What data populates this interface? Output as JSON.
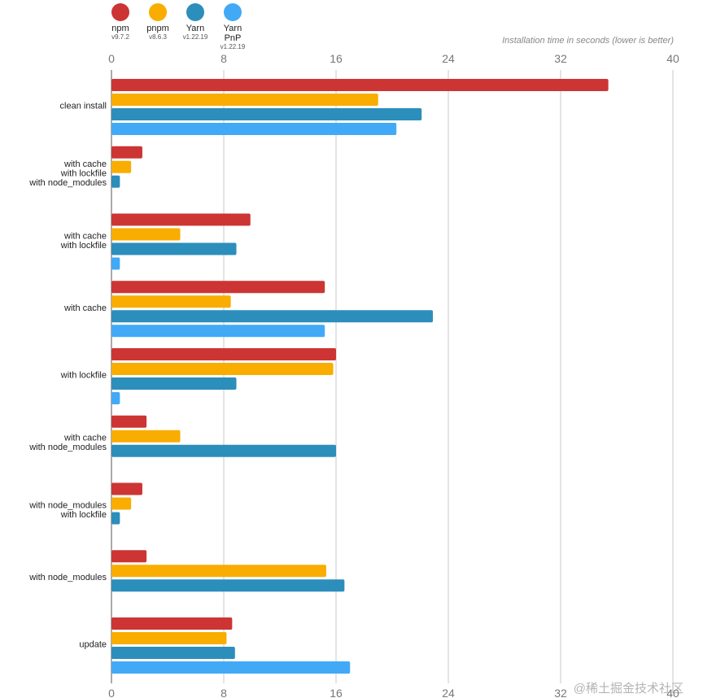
{
  "legend": [
    {
      "name": "npm",
      "version": "v9.7.2",
      "color": "#cc3534"
    },
    {
      "name": "pnpm",
      "version": "v8.6.3",
      "color": "#f9ad00"
    },
    {
      "name": "Yarn",
      "version": "v1.22.19",
      "color": "#2c8ebb"
    },
    {
      "name": "Yarn PnP",
      "version": "v1.22.19",
      "color": "#42a9f7"
    }
  ],
  "caption": "Installation time in seconds (lower is better)",
  "watermark": "@稀土掘金技术社区",
  "chart_data": {
    "type": "bar",
    "orientation": "horizontal",
    "xlabel": "Installation time in seconds (lower is better)",
    "xlim": [
      0,
      40
    ],
    "ticks": [
      0,
      8,
      16,
      24,
      32,
      40
    ],
    "categories": [
      [
        "clean install"
      ],
      [
        "with cache",
        "with lockfile",
        "with node_modules"
      ],
      [
        "with cache",
        "with lockfile"
      ],
      [
        "with cache"
      ],
      [
        "with lockfile"
      ],
      [
        "with cache",
        "with node_modules"
      ],
      [
        "with node_modules",
        "with lockfile"
      ],
      [
        "with node_modules"
      ],
      [
        "update"
      ]
    ],
    "series": [
      {
        "name": "npm",
        "color": "#cc3534",
        "values": [
          35.4,
          2.2,
          9.9,
          15.2,
          16.0,
          2.5,
          2.2,
          2.5,
          8.6
        ]
      },
      {
        "name": "pnpm",
        "color": "#f9ad00",
        "values": [
          19.0,
          1.4,
          4.9,
          8.5,
          15.8,
          4.9,
          1.4,
          15.3,
          8.2
        ]
      },
      {
        "name": "Yarn",
        "color": "#2c8ebb",
        "values": [
          22.1,
          0.6,
          8.9,
          22.9,
          8.9,
          16.0,
          0.6,
          16.6,
          8.8
        ]
      },
      {
        "name": "Yarn PnP",
        "color": "#42a9f7",
        "values": [
          20.3,
          null,
          0.6,
          15.2,
          0.6,
          null,
          null,
          null,
          17.0
        ]
      }
    ]
  }
}
